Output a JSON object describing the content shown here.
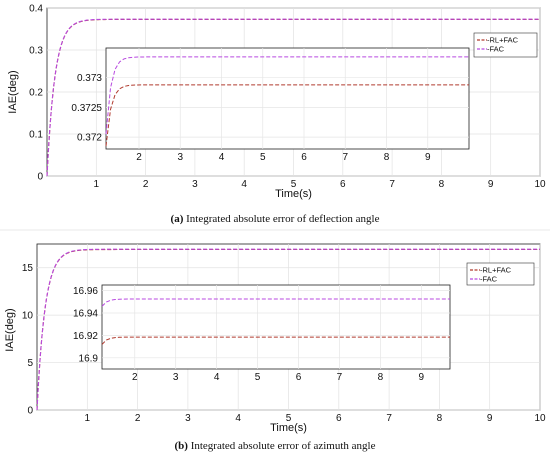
{
  "captions": [
    {
      "tag": "(a)",
      "text": " Integrated absolute error of deflection angle"
    },
    {
      "tag": "(b)",
      "text": " Integrated absolute error of azimuth angle"
    }
  ],
  "chart_data": [
    {
      "type": "line",
      "xlabel": "Time(s)",
      "ylabel": "IAE(deg)",
      "xlim": [
        0,
        10
      ],
      "ylim": [
        0,
        0.4
      ],
      "xticks": [
        "1",
        "2",
        "3",
        "4",
        "5",
        "6",
        "7",
        "8",
        "9",
        "10"
      ],
      "yticks": [
        "0",
        "0.1",
        "0.2",
        "0.3",
        "0.4"
      ],
      "grid": true,
      "series": [
        {
          "name": "-RL+FAC",
          "color": "#b03a2e",
          "final": 0.3728,
          "tau": 0.16
        },
        {
          "name": "-FAC",
          "color": "#b84ae0",
          "final": 0.3734,
          "tau": 0.16
        }
      ],
      "inset": {
        "xlim": [
          1.2,
          10
        ],
        "ylim": [
          0.3718,
          0.3735
        ],
        "xticks": [
          "2",
          "3",
          "4",
          "5",
          "6",
          "7",
          "8",
          "9"
        ],
        "yticks": [
          "0.372",
          "0.3725",
          "0.373"
        ],
        "series": [
          {
            "name": "-RL+FAC",
            "start": 0.37185,
            "final": 0.37288
          },
          {
            "name": "-FAC",
            "start": 0.37205,
            "final": 0.37335
          }
        ]
      }
    },
    {
      "type": "line",
      "xlabel": "Time(s)",
      "ylabel": "IAE(deg)",
      "xlim": [
        0,
        10
      ],
      "ylim": [
        0,
        17.5
      ],
      "xticks": [
        "1",
        "2",
        "3",
        "4",
        "5",
        "6",
        "7",
        "8",
        "9",
        "10"
      ],
      "yticks": [
        "0",
        "5",
        "10",
        "15"
      ],
      "grid": true,
      "series": [
        {
          "name": "-RL+FAC",
          "color": "#b03a2e",
          "final": 16.92,
          "tau": 0.16
        },
        {
          "name": "-FAC",
          "color": "#b84ae0",
          "final": 16.953,
          "tau": 0.16
        }
      ],
      "inset": {
        "xlim": [
          1.2,
          9.7
        ],
        "ylim": [
          16.89,
          16.965
        ],
        "xticks": [
          "2",
          "3",
          "4",
          "5",
          "6",
          "7",
          "8",
          "9"
        ],
        "yticks": [
          "16.9",
          "16.92",
          "16.94",
          "16.96"
        ],
        "series": [
          {
            "name": "-RL+FAC",
            "start": 16.912,
            "final": 16.9185
          },
          {
            "name": "-FAC",
            "start": 16.946,
            "final": 16.9525
          }
        ]
      }
    }
  ]
}
